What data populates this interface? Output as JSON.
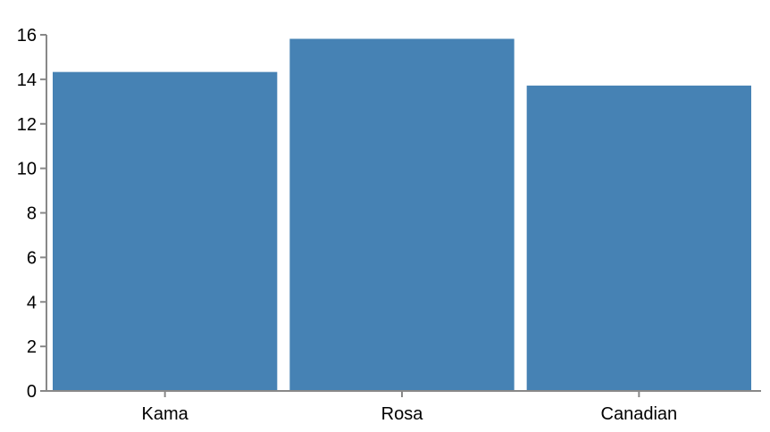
{
  "chart_data": {
    "type": "bar",
    "title": "",
    "xlabel": "",
    "ylabel": "",
    "categories": [
      "Kama",
      "Rosa",
      "Canadian"
    ],
    "values": [
      14.33,
      15.82,
      13.72
    ],
    "ylim": [
      0,
      16
    ],
    "yticks": [
      0,
      2,
      4,
      6,
      8,
      10,
      12,
      14,
      16
    ],
    "ytick_labels": [
      "0",
      "2",
      "4",
      "6",
      "8",
      "10",
      "12",
      "14",
      "16"
    ],
    "grid": false,
    "legend": "none",
    "colors": {
      "bar": "#4682b4",
      "axis": "#888888",
      "text": "#000000"
    }
  }
}
